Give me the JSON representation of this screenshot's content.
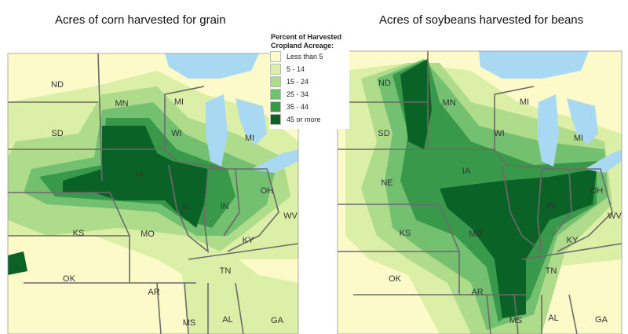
{
  "titles": [
    "Acres of corn harvested for grain",
    "Acres of soybeans harvested for beans"
  ],
  "legend": {
    "title": [
      "Percent of Harvested",
      "Cropland Acreage:"
    ],
    "items": [
      {
        "label": "Less than 5",
        "color": "#fbfac8"
      },
      {
        "label": "5 - 14",
        "color": "#dcefa6"
      },
      {
        "label": "15 - 24",
        "color": "#afdc8b"
      },
      {
        "label": "25 - 34",
        "color": "#72c070"
      },
      {
        "label": "35 - 44",
        "color": "#38994a"
      },
      {
        "label": "45 or more",
        "color": "#0b6227"
      }
    ]
  },
  "maps": [
    {
      "states": [
        "ND",
        "MN",
        "MI",
        "SD",
        "WI",
        "MI",
        "IA",
        "IL",
        "IN",
        "OH",
        "KS",
        "MO",
        "KY",
        "WV",
        "OK",
        "AR",
        "TN",
        "MS",
        "AL",
        "GA"
      ]
    },
    {
      "states": [
        "ND",
        "MN",
        "MI",
        "SD",
        "WI",
        "MI",
        "NE",
        "IA",
        "IN",
        "OH",
        "KS",
        "MO",
        "KY",
        "WV",
        "OK",
        "TN",
        "AR",
        "MS",
        "AL",
        "GA"
      ]
    }
  ]
}
